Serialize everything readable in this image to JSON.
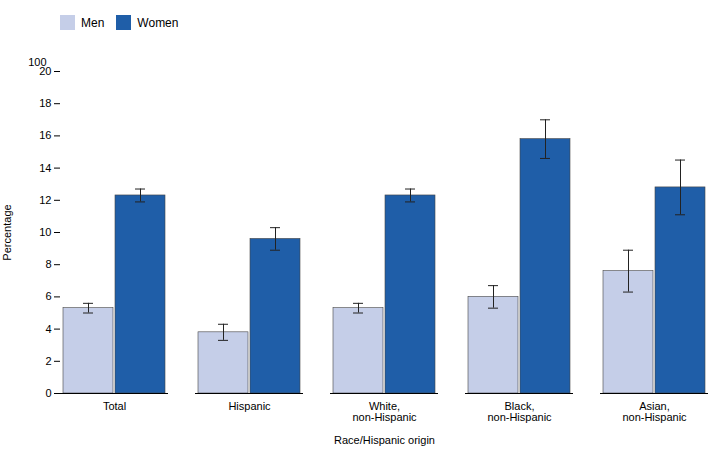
{
  "chart_data": {
    "type": "bar",
    "categories": [
      "Total",
      "Hispanic",
      "White,\nnon-Hispanic",
      "Black,\nnon-Hispanic",
      "Asian,\nnon-Hispanic"
    ],
    "series": [
      {
        "name": "Men",
        "color": "#c5cee8",
        "values": [
          5.3,
          3.8,
          5.3,
          6.0,
          7.6
        ],
        "errors": [
          0.3,
          0.5,
          0.3,
          0.7,
          1.3
        ]
      },
      {
        "name": "Women",
        "color": "#1f5ea8",
        "values": [
          12.3,
          9.6,
          12.3,
          15.8,
          12.8
        ],
        "errors": [
          0.4,
          0.7,
          0.4,
          1.2,
          1.7
        ]
      }
    ],
    "xlabel": "Race/Hispanic origin",
    "ylabel": "Percentage",
    "ylim": [
      0,
      20
    ],
    "yticks": [
      0,
      2,
      4,
      6,
      8,
      10,
      12,
      14,
      16,
      18,
      20
    ],
    "grid": false,
    "legend": "upper left",
    "annotations": [
      {
        "text": "100"
      }
    ]
  }
}
